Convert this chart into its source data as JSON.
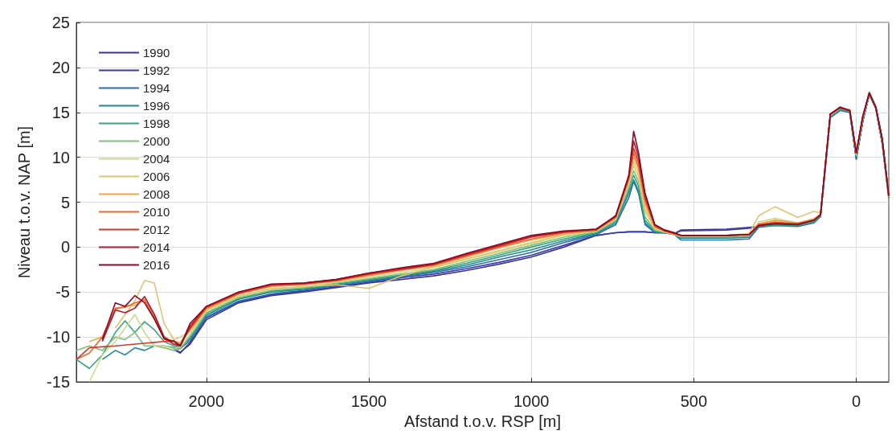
{
  "chart_data": {
    "type": "line",
    "xlabel": "Afstand t.o.v. RSP [m]",
    "ylabel": "Niveau t.o.v. NAP [m]",
    "xlim": [
      2400,
      -100
    ],
    "xticks": [
      2000,
      1500,
      1000,
      500,
      0
    ],
    "ylim": [
      -15,
      25
    ],
    "yticks": [
      -15,
      -10,
      -5,
      0,
      5,
      10,
      15,
      20,
      25
    ],
    "grid": true,
    "legend": "top left",
    "marker": "none",
    "line_style": "solid",
    "x": [
      2400,
      2360,
      2320,
      2280,
      2250,
      2220,
      2190,
      2160,
      2130,
      2100,
      2080,
      2050,
      2000,
      1900,
      1800,
      1700,
      1600,
      1500,
      1400,
      1300,
      1200,
      1100,
      1000,
      900,
      800,
      740,
      700,
      685,
      670,
      650,
      620,
      590,
      560,
      540,
      400,
      330,
      300,
      250,
      180,
      130,
      110,
      80,
      50,
      20,
      0,
      -20,
      -40,
      -60,
      -80,
      -100
    ],
    "series": [
      {
        "name": "1990",
        "color": "#3a3596",
        "values": [
          null,
          null,
          null,
          null,
          null,
          null,
          null,
          null,
          null,
          -11.3,
          -11.7,
          -10.8,
          -8.1,
          -6.2,
          -5.4,
          -5.0,
          -4.5,
          -4.0,
          -3.6,
          -3.2,
          -2.6,
          -1.9,
          -1.1,
          0.0,
          1.3,
          1.6,
          1.7,
          1.7,
          1.7,
          1.7,
          1.6,
          1.6,
          1.5,
          1.9,
          2.0,
          2.2,
          2.3,
          2.5,
          2.4,
          2.8,
          3.5,
          14.5,
          15.3,
          15.0,
          9.8,
          14.0,
          17.0,
          15.5,
          11.5,
          5.5
        ]
      },
      {
        "name": "1992",
        "color": "#3c3da0",
        "values": [
          null,
          null,
          null,
          null,
          null,
          null,
          null,
          null,
          null,
          -11.4,
          -11.8,
          -10.6,
          -7.9,
          -6.1,
          -5.3,
          -4.9,
          -4.4,
          -3.9,
          -3.4,
          -3.0,
          -2.4,
          -1.7,
          -0.9,
          0.2,
          1.3,
          1.6,
          1.7,
          1.7,
          1.7,
          1.7,
          1.6,
          1.6,
          1.5,
          1.8,
          1.9,
          2.1,
          2.3,
          2.5,
          2.4,
          2.8,
          3.5,
          14.5,
          15.3,
          15.0,
          9.9,
          14.0,
          17.0,
          15.5,
          11.6,
          5.5
        ]
      },
      {
        "name": "1994",
        "color": "#2a6db0",
        "values": [
          null,
          null,
          null,
          null,
          null,
          null,
          null,
          null,
          null,
          -11.2,
          -11.3,
          -10.4,
          -7.8,
          -6.0,
          -5.2,
          -4.8,
          -4.3,
          -3.8,
          -3.3,
          -2.8,
          -2.2,
          -1.4,
          -0.6,
          0.5,
          1.4,
          2.5,
          5.5,
          7.3,
          6.0,
          2.5,
          1.6,
          1.6,
          1.4,
          0.8,
          0.8,
          0.9,
          2.2,
          2.4,
          2.3,
          2.7,
          3.4,
          14.4,
          15.2,
          15.0,
          9.8,
          14.0,
          17.0,
          15.4,
          11.5,
          5.5
        ]
      },
      {
        "name": "1996",
        "color": "#218a96",
        "values": [
          null,
          null,
          -12.5,
          -11.5,
          -12.0,
          -11.2,
          -11.5,
          -11.0,
          -11.0,
          -11.2,
          -11.1,
          -10.2,
          -7.6,
          -5.8,
          -5.0,
          -4.7,
          -4.2,
          -3.7,
          -3.2,
          -2.7,
          -2.0,
          -1.1,
          -0.3,
          0.7,
          1.5,
          2.7,
          6.0,
          7.5,
          6.3,
          2.7,
          1.7,
          1.6,
          1.4,
          1.0,
          1.0,
          1.1,
          2.3,
          2.4,
          2.4,
          2.8,
          3.4,
          14.5,
          15.3,
          15.1,
          10.0,
          14.1,
          17.0,
          15.5,
          11.6,
          5.6
        ]
      },
      {
        "name": "1998",
        "color": "#3aa37e",
        "values": [
          -12.5,
          -13.5,
          -12.0,
          -9.5,
          -8.2,
          -9.5,
          -8.3,
          -9.2,
          -10.5,
          -11.0,
          -11.0,
          -10.0,
          -7.4,
          -5.7,
          -4.9,
          -4.6,
          -4.1,
          -3.6,
          -3.1,
          -2.6,
          -1.8,
          -0.9,
          0.0,
          0.9,
          1.6,
          2.9,
          6.4,
          8.0,
          6.8,
          3.0,
          1.8,
          1.6,
          1.4,
          1.1,
          1.1,
          1.2,
          2.4,
          2.5,
          2.4,
          2.8,
          3.5,
          14.6,
          15.4,
          15.1,
          10.1,
          14.2,
          17.1,
          15.5,
          11.7,
          5.6
        ]
      },
      {
        "name": "2000",
        "color": "#7fbf78",
        "values": [
          -11.5,
          -11.0,
          -11.5,
          -10.0,
          -10.3,
          -9.5,
          -11.0,
          -11.0,
          -11.2,
          -11.5,
          -11.3,
          -9.9,
          -7.3,
          -5.6,
          -4.8,
          -4.5,
          -4.0,
          -3.5,
          -3.0,
          -2.5,
          -1.6,
          -0.7,
          0.2,
          1.1,
          1.7,
          3.0,
          6.7,
          8.5,
          7.3,
          3.4,
          1.9,
          1.7,
          1.4,
          1.2,
          1.2,
          1.3,
          2.5,
          2.7,
          2.5,
          3.0,
          3.5,
          14.6,
          15.4,
          15.2,
          10.2,
          14.3,
          17.1,
          15.6,
          11.8,
          5.6
        ]
      },
      {
        "name": "2004",
        "color": "#cfd98a",
        "values": [
          null,
          -15.0,
          -12.0,
          -10.5,
          -9.0,
          -7.5,
          -9.5,
          -11.0,
          -11.0,
          -11.3,
          -11.1,
          -9.7,
          -7.1,
          -5.5,
          -4.7,
          -4.4,
          -3.9,
          -3.4,
          -2.8,
          -2.3,
          -1.4,
          -0.5,
          0.4,
          1.3,
          1.8,
          3.1,
          7.0,
          9.0,
          7.8,
          4.0,
          2.0,
          1.7,
          1.4,
          1.2,
          1.2,
          1.3,
          2.8,
          3.2,
          2.7,
          3.2,
          3.6,
          14.7,
          15.5,
          15.2,
          10.3,
          14.3,
          17.1,
          15.6,
          11.8,
          5.6
        ]
      },
      {
        "name": "2006",
        "color": "#e0c470",
        "values": [
          null,
          null,
          null,
          -9.0,
          -7.5,
          -6.0,
          -3.7,
          -4.0,
          -8.5,
          -10.3,
          -10.0,
          -9.4,
          -7.0,
          -5.4,
          -4.6,
          -4.4,
          -4.2,
          -4.6,
          -3.2,
          -2.2,
          -1.3,
          -0.4,
          0.5,
          1.4,
          1.8,
          3.2,
          7.2,
          9.5,
          8.2,
          4.3,
          2.1,
          1.8,
          1.4,
          1.3,
          1.3,
          1.5,
          3.5,
          4.5,
          3.3,
          4.0,
          3.8,
          14.7,
          15.5,
          15.3,
          10.4,
          14.4,
          17.2,
          15.6,
          11.9,
          5.7
        ]
      },
      {
        "name": "2008",
        "color": "#eba450",
        "values": [
          null,
          -10.5,
          -10.0,
          -7.0,
          -6.5,
          -6.5,
          -5.8,
          -7.5,
          -10.0,
          -10.5,
          -10.6,
          -9.2,
          -6.9,
          -5.2,
          -4.4,
          -4.2,
          -3.8,
          -3.2,
          -2.6,
          -2.1,
          -1.1,
          -0.1,
          0.8,
          1.5,
          1.9,
          3.3,
          7.5,
          10.0,
          8.7,
          4.8,
          2.2,
          1.8,
          1.5,
          1.3,
          1.3,
          1.4,
          2.6,
          3.0,
          2.7,
          3.1,
          3.7,
          14.7,
          15.5,
          15.3,
          10.4,
          14.4,
          17.2,
          15.6,
          11.9,
          5.7
        ]
      },
      {
        "name": "2010",
        "color": "#e46c2c",
        "values": [
          -12.5,
          -11.8,
          -10.0,
          -6.8,
          -6.7,
          -6.2,
          -5.9,
          -7.8,
          -10.2,
          -10.8,
          -10.8,
          -9.1,
          -6.8,
          -5.2,
          -4.3,
          -4.1,
          -3.7,
          -3.1,
          -2.5,
          -2.0,
          -1.0,
          0.0,
          0.9,
          1.6,
          1.9,
          3.3,
          7.6,
          10.5,
          9.0,
          5.2,
          2.3,
          1.8,
          1.5,
          1.3,
          1.3,
          1.4,
          2.5,
          2.8,
          2.6,
          3.0,
          3.6,
          14.8,
          15.5,
          15.2,
          10.5,
          14.4,
          17.2,
          15.6,
          12.0,
          5.7
        ]
      },
      {
        "name": "2012",
        "color": "#d23b2a",
        "values": [
          -12.5,
          -11.2,
          -11.1,
          -11.0,
          -10.9,
          -10.8,
          -10.7,
          -10.6,
          -10.5,
          -10.4,
          -10.9,
          -9.0,
          -6.7,
          -5.1,
          -4.2,
          -4.1,
          -3.7,
          -3.0,
          -2.5,
          -1.9,
          -0.9,
          0.1,
          1.1,
          1.7,
          1.9,
          3.4,
          7.7,
          11.0,
          9.5,
          5.5,
          2.4,
          1.8,
          1.5,
          1.3,
          1.3,
          1.4,
          2.5,
          2.7,
          2.6,
          3.0,
          3.6,
          14.8,
          15.5,
          15.2,
          10.5,
          14.5,
          17.2,
          15.6,
          12.0,
          5.7
        ]
      },
      {
        "name": "2014",
        "color": "#b5172f",
        "values": [
          null,
          null,
          -10.5,
          -7.0,
          -7.3,
          -6.8,
          -5.5,
          -7.5,
          -10.0,
          -10.8,
          -11.0,
          -8.8,
          -6.6,
          -5.0,
          -4.2,
          -4.0,
          -3.6,
          -2.9,
          -2.4,
          -1.9,
          -0.8,
          0.2,
          1.2,
          1.7,
          2.0,
          3.5,
          7.9,
          11.8,
          10.0,
          5.8,
          2.5,
          1.9,
          1.6,
          1.3,
          1.3,
          1.4,
          2.4,
          2.6,
          2.5,
          3.0,
          3.6,
          14.8,
          15.5,
          15.2,
          10.5,
          14.5,
          17.2,
          15.6,
          12.0,
          5.7
        ]
      },
      {
        "name": "2016",
        "color": "#8b0a24",
        "values": [
          null,
          null,
          -10.3,
          -6.2,
          -6.6,
          -5.4,
          -6.2,
          -8.0,
          -10.2,
          -10.5,
          -11.0,
          -8.5,
          -6.6,
          -5.0,
          -4.1,
          -4.0,
          -3.6,
          -2.9,
          -2.3,
          -1.8,
          -0.7,
          0.3,
          1.3,
          1.8,
          2.0,
          3.5,
          8.0,
          12.9,
          10.5,
          6.0,
          2.5,
          1.9,
          1.6,
          1.3,
          1.3,
          1.4,
          2.4,
          2.6,
          2.5,
          3.0,
          3.6,
          14.8,
          15.6,
          15.2,
          10.5,
          14.6,
          17.1,
          15.6,
          12.0,
          5.7
        ]
      }
    ]
  }
}
